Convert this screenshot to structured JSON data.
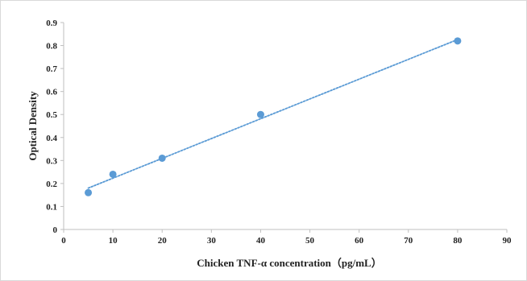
{
  "chart_data": {
    "type": "scatter",
    "xlabel": "Chicken TNF-α concentration（pg/mL）",
    "ylabel": "Optical Density",
    "xlim": [
      0,
      90
    ],
    "ylim": [
      0,
      0.9
    ],
    "x_ticks": [
      0,
      10,
      20,
      30,
      40,
      50,
      60,
      70,
      80,
      90
    ],
    "y_ticks": [
      0,
      0.1,
      0.2,
      0.3,
      0.4,
      0.5,
      0.6,
      0.7,
      0.8,
      0.9
    ],
    "grid": false,
    "series": [
      {
        "points": [
          {
            "x": 5,
            "y": 0.16
          },
          {
            "x": 10,
            "y": 0.24
          },
          {
            "x": 20,
            "y": 0.31
          },
          {
            "x": 40,
            "y": 0.5
          },
          {
            "x": 80,
            "y": 0.82
          }
        ],
        "color": "#5b9bd5"
      }
    ],
    "trendline": {
      "type": "linear",
      "style": "dotted",
      "from": {
        "x": 5,
        "y": 0.18
      },
      "to": {
        "x": 80,
        "y": 0.826
      },
      "color": "#5b9bd5"
    }
  }
}
